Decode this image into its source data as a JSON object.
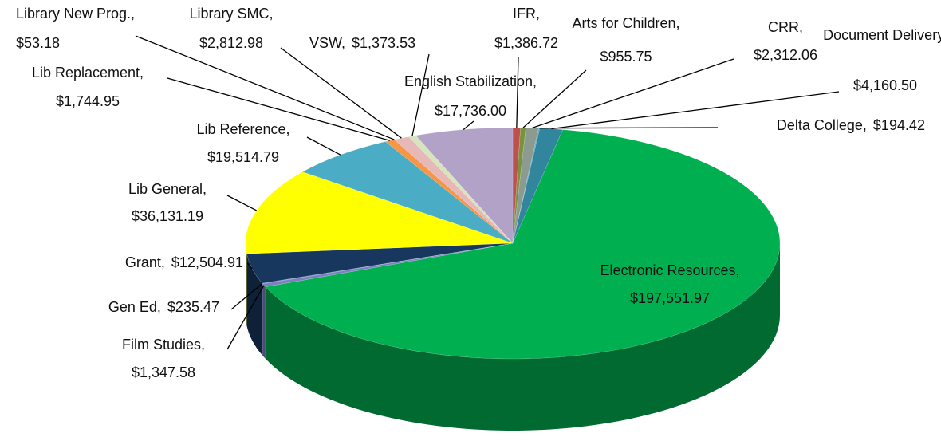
{
  "chart_data": {
    "type": "pie",
    "categories": [
      "IFR,",
      "Arts for Children,",
      "CRR,",
      "Delta College,",
      "Document Delivery,",
      "Electronic Resources,",
      "Film Studies,",
      "Gen Ed,",
      "Grant,",
      "Lib General,",
      "Lib Reference,",
      "Lib Replacement,",
      "Library New Prog.,",
      "Library SMC,",
      "VSW,",
      "English Stabilization,"
    ],
    "values": [
      1386.72,
      955.75,
      2312.06,
      194.42,
      4160.5,
      197551.97,
      1347.58,
      235.47,
      12504.91,
      36131.19,
      19514.79,
      1744.95,
      53.18,
      2812.98,
      1373.53,
      17736.0
    ],
    "value_labels": [
      "$1,386.72",
      "$955.75",
      "$2,312.06",
      "$194.42",
      "$4,160.50",
      "$197,551.97",
      "$1,347.58",
      "$235.47",
      "$12,504.91",
      "$36,131.19",
      "$19,514.79",
      "$1,744.95",
      "$53.18",
      "$2,812.98",
      "$1,373.53",
      "$17,736.00"
    ],
    "colors": [
      "#c0504d",
      "#77933c",
      "#8c9a8f",
      "#4bacc6",
      "#31859c",
      "#00b050",
      "#7f7fbf",
      "#4f81bd",
      "#17375e",
      "#ffff00",
      "#4bacc6",
      "#f79646",
      "#c0504d",
      "#e6b9b8",
      "#d7e4bd",
      "#b3a2c7"
    ]
  }
}
